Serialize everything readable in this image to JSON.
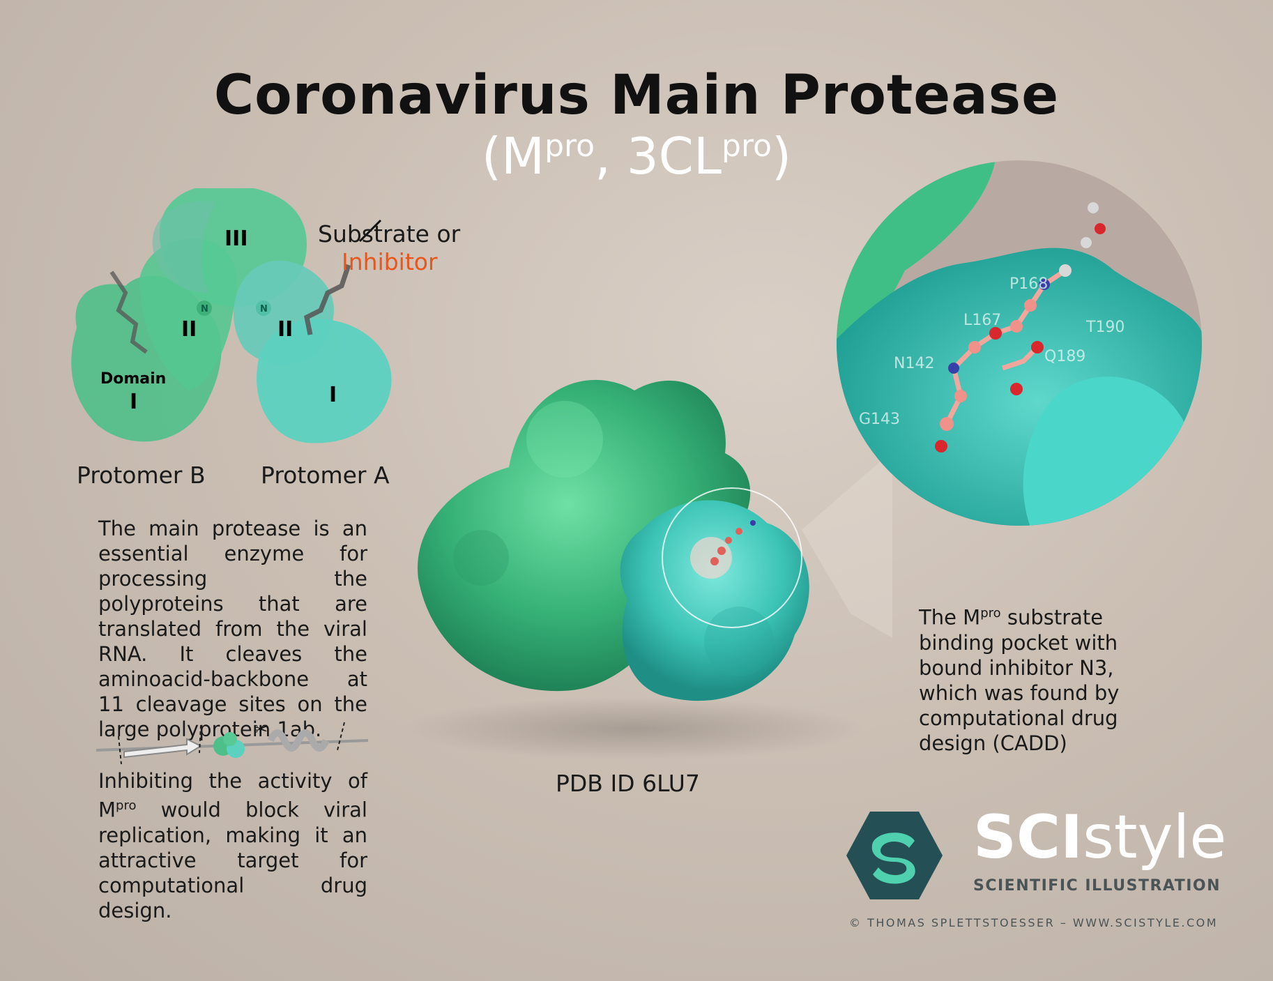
{
  "title": "Coronavirus Main Protease",
  "subtitle": {
    "open": "(M",
    "sup1": "pro",
    "mid": ", 3CL",
    "sup2": "pro",
    "close": ")"
  },
  "diagram": {
    "protomer_b": "Protomer B",
    "protomer_a": "Protomer A",
    "substrate_label": "Substrate or",
    "inhibitor_label": "Inhibitor",
    "domain_word": "Domain",
    "domain_i": "I",
    "domain_ii": "II",
    "domain_iii": "III",
    "n_label": "N"
  },
  "paragraph1": "The main protease is an essential enzyme for processing the polyproteins that are translated from the viral RNA. It cleaves the aminoacid-backbone at 11 cleavage sites on the large polyprotein 1ab.",
  "paragraph2": {
    "part1": "Inhibiting the activity of M",
    "sup": "pro",
    "part2": " would block viral replication, making it an attractive target for computational drug design."
  },
  "paragraph3": {
    "part1": "The M",
    "sup": "pro",
    "part2": " substrate binding pocket with bound inhibitor N3, which was found by computational drug design (CADD)"
  },
  "pocket_residues": [
    "P168",
    "L167",
    "T190",
    "Q189",
    "N142",
    "G143"
  ],
  "pdb_label": "PDB ID 6LU7",
  "brand": {
    "name_bold": "SCI",
    "name_light": "style",
    "tagline": "SCIENTIFIC ILLUSTRATION",
    "copyright": "© THOMAS SPLETTSTOESSER – WWW.SCISTYLE.COM"
  },
  "colors": {
    "protomer_b": "#4fbf8a",
    "protomer_a": "#5cd1c0",
    "inhibitor": "#e8561e",
    "logo": "#244f55"
  }
}
